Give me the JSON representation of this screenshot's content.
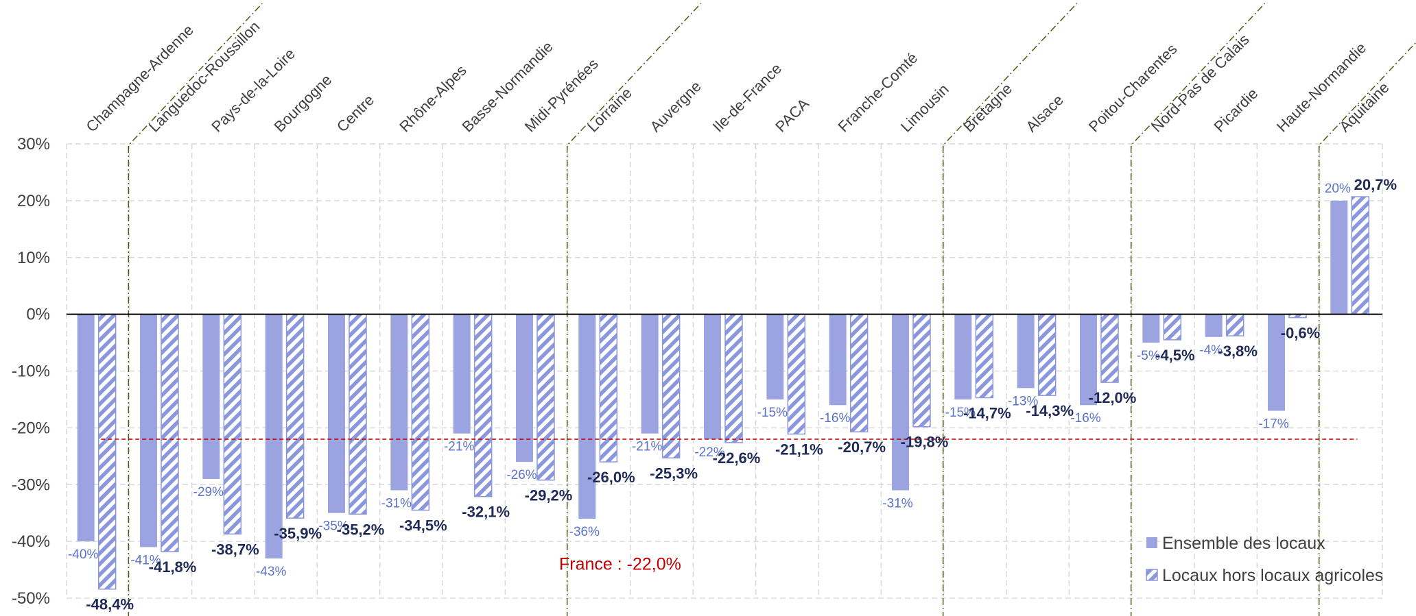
{
  "chart_data": {
    "type": "bar",
    "categories": [
      "Champagne-Ardenne",
      "Languedoc-Roussillon",
      "Pays-de-la-Loire",
      "Bourgogne",
      "Centre",
      "Rhône-Alpes",
      "Basse-Normandie",
      "Midi-Pyrénées",
      "Lorraine",
      "Auvergne",
      "Ile-de-France",
      "PACA",
      "Franche-Comté",
      "Limousin",
      "Bretagne",
      "Alsace",
      "Poitou-Charentes",
      "Nord-Pas de Calais",
      "Picardie",
      "Haute-Normandie",
      "Aquitaine"
    ],
    "series": [
      {
        "name": "Ensemble des locaux",
        "values": [
          -40,
          -41,
          -29,
          -43,
          -35,
          -31,
          -21,
          -26,
          -36,
          -21,
          -22,
          -15,
          -16,
          -31,
          -15,
          -13,
          -16,
          -5,
          -4,
          -17,
          20
        ],
        "labels": [
          "-40%",
          "-41%",
          "-29%",
          "-43%",
          "-35%",
          "-31%",
          "-21%",
          "-26%",
          "-36%",
          "-21%",
          "-22%",
          "-15%",
          "-16%",
          "-31%",
          "-15%",
          "-13%",
          "-16%",
          "-5%",
          "-4%",
          "-17%",
          "20%"
        ]
      },
      {
        "name": "Locaux hors locaux agricoles",
        "values": [
          -48.4,
          -41.8,
          -38.7,
          -35.9,
          -35.2,
          -34.5,
          -32.1,
          -29.2,
          -26.0,
          -25.3,
          -22.6,
          -21.1,
          -20.7,
          -19.8,
          -14.7,
          -14.3,
          -12.0,
          -4.5,
          -3.8,
          -0.6,
          20.7
        ],
        "labels": [
          "-48,4%",
          "-41,8%",
          "-38,7%",
          "-35,9%",
          "-35,2%",
          "-34,5%",
          "-32,1%",
          "-29,2%",
          "-26,0%",
          "-25,3%",
          "-22,6%",
          "-21,1%",
          "-20,7%",
          "-19,8%",
          "-14,7%",
          "-14,3%",
          "-12,0%",
          "-4,5%",
          "-3,8%",
          "-0,6%",
          "20,7%"
        ]
      }
    ],
    "y_ticks": [
      "30%",
      "20%",
      "10%",
      "0%",
      "-10%",
      "-20%",
      "-30%",
      "-40%",
      "-50%"
    ],
    "ylim": [
      -50,
      30
    ],
    "reference_line": {
      "value": -22.0,
      "label": "France : -22,0%"
    },
    "legend": {
      "position": "bottom-right",
      "labels": [
        "Ensemble des locaux",
        "Locaux hors locaux agricoles"
      ]
    },
    "grid": true,
    "colors": {
      "solid": "#9BA3E0",
      "hatch": "#8A97DC",
      "label_solid": "#5B73C8",
      "label_hatch": "#1F2A56",
      "reference": "#C00000",
      "separator": "#4F5A14"
    }
  }
}
